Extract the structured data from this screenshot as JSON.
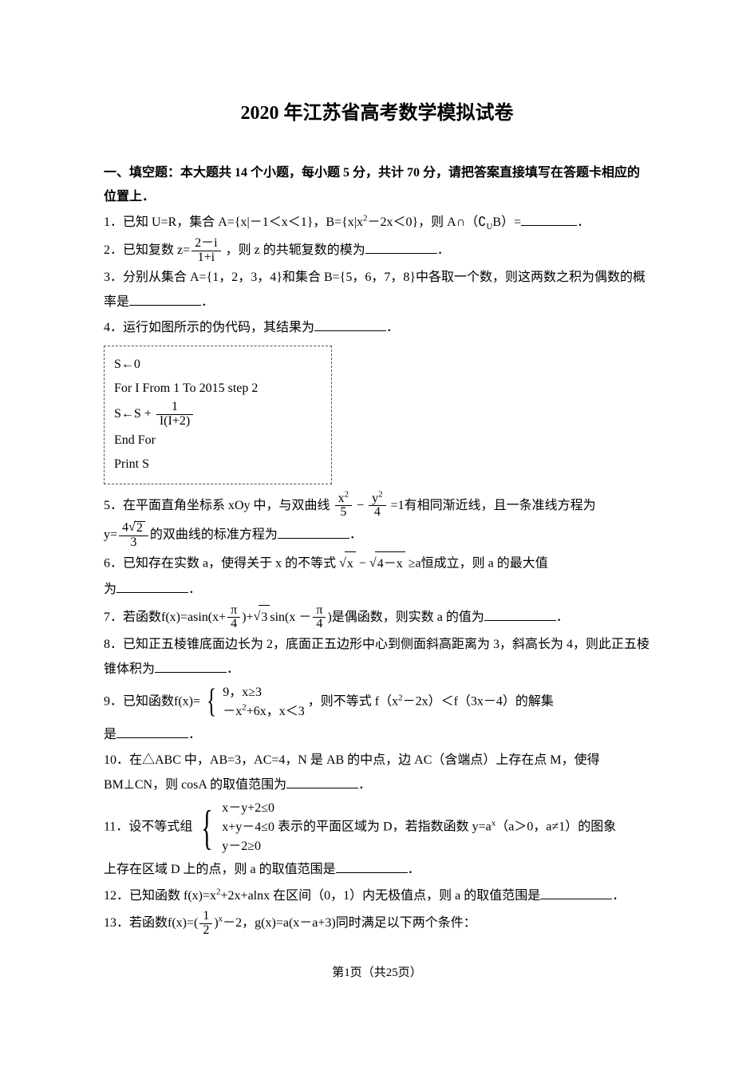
{
  "title": "2020 年江苏省高考数学模拟试卷",
  "section1_head": "一、填空题：本大题共 14 个小题，每小题 5 分，共计 70 分，请把答案直接填写在答题卡相应的位置上．",
  "q1_a": "1．已知 U=R，集合 A={x|－1＜x＜1}，B={x|x",
  "q1_b": "－2x＜0}，则 A∩（∁",
  "q1_c": "B）=",
  "q1_d": "．",
  "q2_a": "2．已知复数",
  "q2_z": "z=",
  "q2_num": "2－i",
  "q2_den": "1+i",
  "q2_b": "，则 z 的共轭复数的模为",
  "q2_c": "．",
  "q3_a": "3．分别从集合 A={1，2，3，4}和集合 B={5，6，7，8}中各取一个数，则这两数之积为偶数的概率是",
  "q3_b": "．",
  "q4_a": "4．运行如图所示的伪代码，其结果为",
  "q4_b": "．",
  "code_l1": "S←0",
  "code_l2": "For I From 1 To 2015 step 2",
  "code_l3a": "S←S +",
  "code_num": "1",
  "code_den": "I(I+2)",
  "code_l4": "End For",
  "code_l5": "Print S",
  "q5_a": "5．在平面直角坐标系 xOy 中，与双曲线",
  "q5_num1": "x",
  "q5_den1": "5",
  "q5_mid": " − ",
  "q5_num2": "y",
  "q5_den2": "4",
  "q5_b": "=1有相同渐近线，且一条准线方程为",
  "q5_c": "y=",
  "q5_num3top": "4",
  "q5_num3rad": "2",
  "q5_den3": "3",
  "q5_d": "的双曲线的标准方程为",
  "q5_e": "．",
  "q6_a": "6．已知存在实数 a，使得关于 x 的不等式",
  "q6_r1": "x",
  "q6_mid": " − ",
  "q6_r2": "4－x",
  "q6_b": "≥a恒成立，则 a 的最大值",
  "q6_c": "为",
  "q6_d": "．",
  "q7_a": "7．若函数f(x)=asin(x+",
  "q7_num1": "π",
  "q7_den1": "4",
  "q7_b": ")+",
  "q7_r": "3",
  "q7_c": "sin(x －",
  "q7_num2": "π",
  "q7_den2": "4",
  "q7_d": ")是偶函数，则实数 a 的值为",
  "q7_e": "．",
  "q8_a": "8．已知正五棱锥底面边长为 2，底面正五边形中心到侧面斜高距离为 3，斜高长为 4，则此正五棱锥体积为",
  "q8_b": "．",
  "q9_a": "9．已知函数f(x)=",
  "q9_c1": "9，x≥3",
  "q9_c2a": "－x",
  "q9_c2b": "+6x，x＜3",
  "q9_b": "，则不等式 f（x",
  "q9_c": "－2x）＜f（3x－4）的解集",
  "q9_d": "是",
  "q9_e": "．",
  "q10_a": "10．在△ABC 中，AB=3，AC=4，N 是 AB 的中点，边 AC（含端点）上存在点 M，使得 BM⊥CN，则 cosA 的取值范围为",
  "q10_b": "．",
  "q11_a": "11．设不等式组",
  "q11_c1": "x－y+2≤0",
  "q11_c2": "x+y－4≤0",
  "q11_c3": "y－2≥0",
  "q11_b": "表示的平面区域为 D，若指数函数 y=a",
  "q11_c": "（a＞0，a≠1）的图象",
  "q11_d": "上存在区域 D 上的点，则 a 的取值范围是",
  "q11_e": "．",
  "q12_a": "12．已知函数 f(x)=x",
  "q12_b": "+2x+alnx 在区间（0，1）内无极值点，则 a 的取值范围是",
  "q12_c": "．",
  "q13_a": "13．若函数f(x)=(",
  "q13_num": "1",
  "q13_den": "2",
  "q13_b": ")",
  "q13_c": "－2，g(x)=a(x－a+3)同时满足以下两个条件：",
  "footer": "第1页（共25页）"
}
